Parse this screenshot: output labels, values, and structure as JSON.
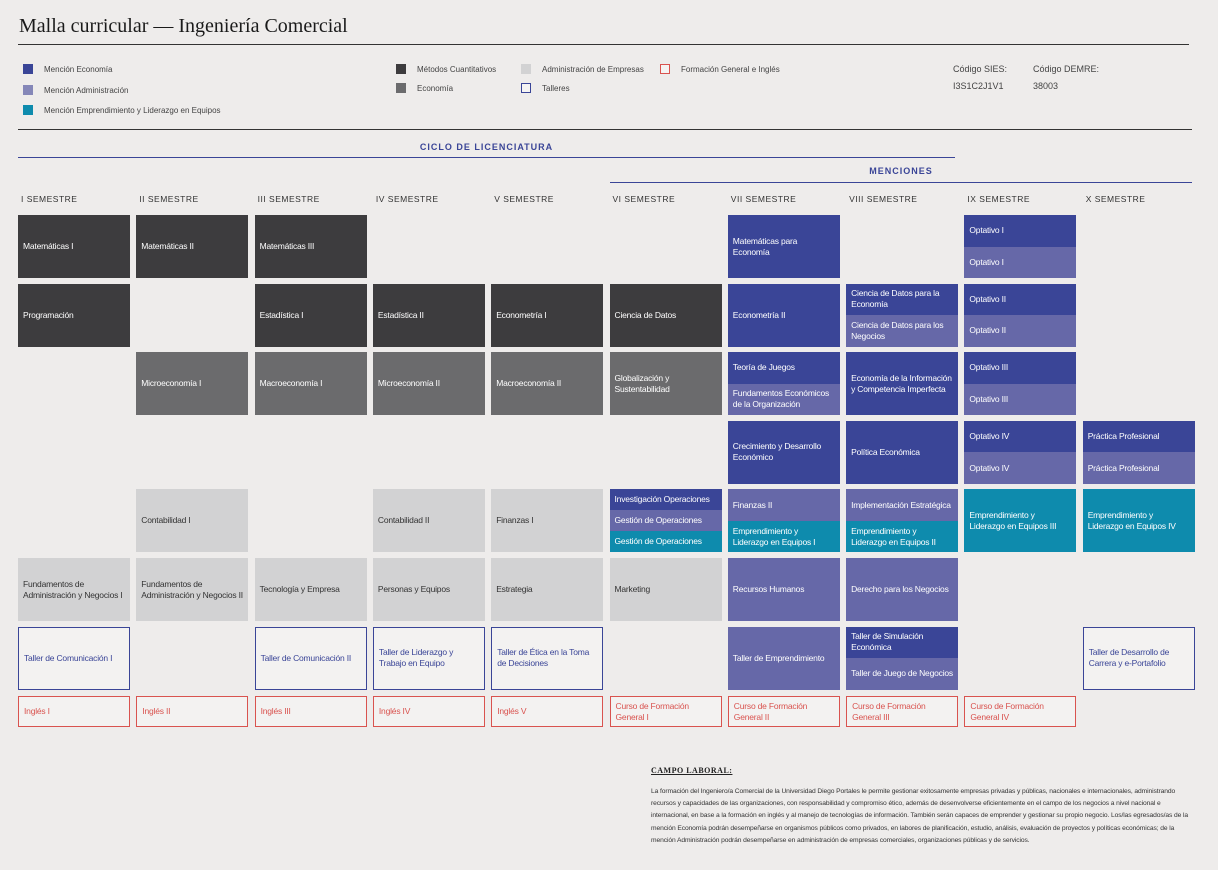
{
  "header": {
    "title": "Malla curricular — Ingeniería Comercial"
  },
  "legend": [
    {
      "label": "Mención Economía",
      "fill": "#3a4597"
    },
    {
      "label": "Mención Administración",
      "fill": "#8587b8"
    },
    {
      "label": "Mención Emprendimiento y Liderazgo en Equipos",
      "fill": "#0e8bad"
    },
    {
      "label": "Métodos Cuantitativos",
      "fill": "#3d3c3e"
    },
    {
      "label": "Economía",
      "fill": "#6b6b6d"
    },
    {
      "label": "Administración de Empresas",
      "fill": "#d2d2d3"
    },
    {
      "label": "Talleres",
      "border": "#3a4597"
    },
    {
      "label": "Formación General e Inglés",
      "border": "#d9534f"
    }
  ],
  "codes": [
    {
      "label": "Código SIES:",
      "value": "I3S1C2J1V1"
    },
    {
      "label": "Código DEMRE:",
      "value": "38003"
    }
  ],
  "sections": {
    "cycle": "CICLO DE LICENCIATURA",
    "mentions": "MENCIONES"
  },
  "semesters": [
    "I SEMESTRE",
    "II SEMESTRE",
    "III SEMESTRE",
    "IV SEMESTRE",
    "V SEMESTRE",
    "VI SEMESTRE",
    "VII SEMESTRE",
    "VIII SEMESTRE",
    "IX SEMESTRE",
    "X SEMESTRE"
  ],
  "grid": {
    "rows": [
      [
        [
          {
            "text": "Matemáticas I",
            "fill": "#3d3c3e"
          }
        ],
        [
          {
            "text": "Matemáticas II",
            "fill": "#3d3c3e"
          }
        ],
        [
          {
            "text": "Matemáticas III",
            "fill": "#3d3c3e"
          }
        ],
        null,
        null,
        null,
        [
          {
            "text": "Matemáticas para Economía",
            "fill": "#3a4597"
          }
        ],
        null,
        [
          {
            "text": "Optativo I",
            "fill": "#3a4597"
          },
          {
            "text": "Optativo I",
            "fill": "#6668a8"
          }
        ],
        null
      ],
      [
        [
          {
            "text": "Programación",
            "fill": "#3d3c3e"
          }
        ],
        null,
        [
          {
            "text": "Estadística I",
            "fill": "#3d3c3e"
          }
        ],
        [
          {
            "text": "Estadística II",
            "fill": "#3d3c3e"
          }
        ],
        [
          {
            "text": "Econometría I",
            "fill": "#3d3c3e"
          }
        ],
        [
          {
            "text": "Ciencia de Datos",
            "fill": "#3d3c3e"
          }
        ],
        [
          {
            "text": "Econometría II",
            "fill": "#3a4597"
          }
        ],
        [
          {
            "text": "Ciencia de Datos para la Economía",
            "fill": "#3a4597"
          },
          {
            "text": "Ciencia de Datos para los Negocios",
            "fill": "#6668a8"
          }
        ],
        [
          {
            "text": "Optativo II",
            "fill": "#3a4597"
          },
          {
            "text": "Optativo II",
            "fill": "#6668a8"
          }
        ],
        null
      ],
      [
        null,
        [
          {
            "text": "Microeconomía I",
            "fill": "#6b6b6d"
          }
        ],
        [
          {
            "text": "Macroeconomía I",
            "fill": "#6b6b6d"
          }
        ],
        [
          {
            "text": "Microeconomía II",
            "fill": "#6b6b6d"
          }
        ],
        [
          {
            "text": "Macroeconomía II",
            "fill": "#6b6b6d"
          }
        ],
        [
          {
            "text": "Globalización y Sustentabilidad",
            "fill": "#6b6b6d"
          }
        ],
        [
          {
            "text": "Teoría de Juegos",
            "fill": "#3a4597"
          },
          {
            "text": "Fundamentos Económicos de la Organización",
            "fill": "#6668a8"
          }
        ],
        [
          {
            "text": "Economía de la Información y Competencia Imperfecta",
            "fill": "#3a4597"
          }
        ],
        [
          {
            "text": "Optativo III",
            "fill": "#3a4597"
          },
          {
            "text": "Optativo III",
            "fill": "#6668a8"
          }
        ],
        null
      ],
      [
        null,
        null,
        null,
        null,
        null,
        null,
        [
          {
            "text": "Crecimiento y Desarrollo Económico",
            "fill": "#3a4597"
          }
        ],
        [
          {
            "text": "Política Económica",
            "fill": "#3a4597"
          }
        ],
        [
          {
            "text": "Optativo IV",
            "fill": "#3a4597"
          },
          {
            "text": "Optativo IV",
            "fill": "#6668a8"
          }
        ],
        [
          {
            "text": "Práctica Profesional",
            "fill": "#3a4597"
          },
          {
            "text": "Práctica Profesional",
            "fill": "#6668a8"
          }
        ]
      ],
      [
        null,
        [
          {
            "text": "Contabilidad I",
            "fill": "#d2d2d3"
          }
        ],
        null,
        [
          {
            "text": "Contabilidad II",
            "fill": "#d2d2d3"
          }
        ],
        [
          {
            "text": "Finanzas I",
            "fill": "#d2d2d3"
          }
        ],
        [
          {
            "text": "Investigación Operaciones",
            "fill": "#3a4597"
          },
          {
            "text": "Gestión de Operaciones",
            "fill": "#6668a8"
          },
          {
            "text": "Gestión de Operaciones",
            "fill": "#0e8bad"
          }
        ],
        [
          {
            "text": "Finanzas II",
            "fill": "#6668a8"
          },
          {
            "text": "Emprendimiento y Liderazgo en Equipos I",
            "fill": "#0e8bad"
          }
        ],
        [
          {
            "text": "Implementación Estratégica",
            "fill": "#6668a8"
          },
          {
            "text": "Emprendimiento y Liderazgo en Equipos II",
            "fill": "#0e8bad"
          }
        ],
        [
          {
            "text": "Emprendimiento y Liderazgo en Equipos III",
            "fill": "#0e8bad"
          }
        ],
        [
          {
            "text": "Emprendimiento y Liderazgo en Equipos IV",
            "fill": "#0e8bad"
          }
        ]
      ],
      [
        [
          {
            "text": "Fundamentos de Administración y Negocios I",
            "fill": "#d2d2d3"
          }
        ],
        [
          {
            "text": "Fundamentos de Administración y Negocios II",
            "fill": "#d2d2d3"
          }
        ],
        [
          {
            "text": "Tecnología y Empresa",
            "fill": "#d2d2d3"
          }
        ],
        [
          {
            "text": "Personas y Equipos",
            "fill": "#d2d2d3"
          }
        ],
        [
          {
            "text": "Estrategia",
            "fill": "#d2d2d3"
          }
        ],
        [
          {
            "text": "Marketing",
            "fill": "#d2d2d3"
          }
        ],
        [
          {
            "text": "Recursos Humanos",
            "fill": "#6668a8"
          }
        ],
        [
          {
            "text": "Derecho para los Negocios",
            "fill": "#6668a8"
          }
        ],
        null,
        null
      ],
      [
        [
          {
            "text": "Taller de Comunicación I",
            "border": "#3a4597"
          }
        ],
        null,
        [
          {
            "text": "Taller de Comunicación II",
            "border": "#3a4597"
          }
        ],
        [
          {
            "text": "Taller de Liderazgo y Trabajo en Equipo",
            "border": "#3a4597"
          }
        ],
        [
          {
            "text": "Taller de Ética en la Toma de Decisiones",
            "border": "#3a4597"
          }
        ],
        null,
        [
          {
            "text": "Taller de Emprendimiento",
            "fill": "#6668a8"
          }
        ],
        [
          {
            "text": "Taller de Simulación Económica",
            "fill": "#3a4597"
          },
          {
            "text": "Taller de Juego de Negocios",
            "fill": "#6668a8"
          }
        ],
        null,
        [
          {
            "text": "Taller de Desarrollo de Carrera y e-Portafolio",
            "border": "#3a4597"
          }
        ]
      ],
      [
        [
          {
            "text": "Inglés I",
            "border": "#d9534f"
          }
        ],
        [
          {
            "text": "Inglés II",
            "border": "#d9534f"
          }
        ],
        [
          {
            "text": "Inglés III",
            "border": "#d9534f"
          }
        ],
        [
          {
            "text": "Inglés IV",
            "border": "#d9534f"
          }
        ],
        [
          {
            "text": "Inglés V",
            "border": "#d9534f"
          }
        ],
        [
          {
            "text": "Curso de Formación General I",
            "border": "#d9534f"
          }
        ],
        [
          {
            "text": "Curso de Formación General II",
            "border": "#d9534f"
          }
        ],
        [
          {
            "text": "Curso de Formación General III",
            "border": "#d9534f"
          }
        ],
        [
          {
            "text": "Curso de Formación General IV",
            "border": "#d9534f"
          }
        ],
        null
      ]
    ]
  },
  "campo_laboral": {
    "title": "CAMPO LABORAL:",
    "text": "La formación del Ingeniero/a Comercial de la Universidad Diego Portales le permite gestionar exitosamente empresas privadas y públicas, nacionales e internacionales, administrando recursos y capacidades de las organizaciones, con responsabilidad y compromiso ético, además de desenvolverse eficientemente en el campo de los negocios a nivel nacional e internacional, en base a la formación en inglés y al manejo de tecnologías de información. También serán capaces de emprender y gestionar su propio negocio. Los/las egresados/as de la mención Economía podrán desempeñarse en organismos públicos como privados, en labores de planificación, estudio, análisis, evaluación de proyectos y políticas económicas; de la mención Administración podrán desempeñarse en administración de empresas comerciales, organizaciones públicas y de servicios."
  }
}
